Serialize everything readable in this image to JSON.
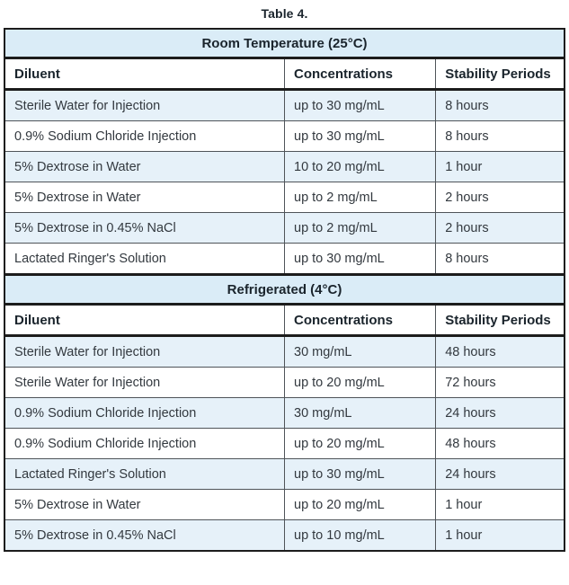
{
  "page": {
    "title": "Table 4."
  },
  "colors": {
    "section_header_bg": "#daecf7",
    "alt_row_bg": "#e6f1f9",
    "border_dark": "#1c1c1c",
    "grid_line": "#4f5459",
    "body_text": "#33393f",
    "heading_text": "#1a242c"
  },
  "table": {
    "columns": [
      "Diluent",
      "Concentrations",
      "Stability Periods"
    ],
    "sections": [
      {
        "header": "Room Temperature (25°C)",
        "rows": [
          [
            "Sterile Water for Injection",
            "up to 30 mg/mL",
            "8 hours"
          ],
          [
            "0.9% Sodium Chloride Injection",
            "up to 30 mg/mL",
            "8 hours"
          ],
          [
            "5% Dextrose in Water",
            "10 to 20 mg/mL",
            "1 hour"
          ],
          [
            "5% Dextrose in Water",
            "up to 2 mg/mL",
            "2 hours"
          ],
          [
            "5% Dextrose in 0.45% NaCl",
            "up to 2 mg/mL",
            "2 hours"
          ],
          [
            "Lactated Ringer's Solution",
            "up to 30 mg/mL",
            "8 hours"
          ]
        ]
      },
      {
        "header": "Refrigerated (4°C)",
        "rows": [
          [
            "Sterile Water for Injection",
            "30 mg/mL",
            "48 hours"
          ],
          [
            "Sterile Water for Injection",
            "up to 20 mg/mL",
            "72 hours"
          ],
          [
            "0.9% Sodium Chloride Injection",
            "30 mg/mL",
            "24 hours"
          ],
          [
            "0.9% Sodium Chloride Injection",
            "up to 20 mg/mL",
            "48 hours"
          ],
          [
            "Lactated Ringer's Solution",
            "up to 30 mg/mL",
            "24 hours"
          ],
          [
            "5% Dextrose in Water",
            "up to 20 mg/mL",
            "1 hour"
          ],
          [
            "5% Dextrose in 0.45% NaCl",
            "up to 10 mg/mL",
            "1 hour"
          ]
        ]
      }
    ]
  }
}
